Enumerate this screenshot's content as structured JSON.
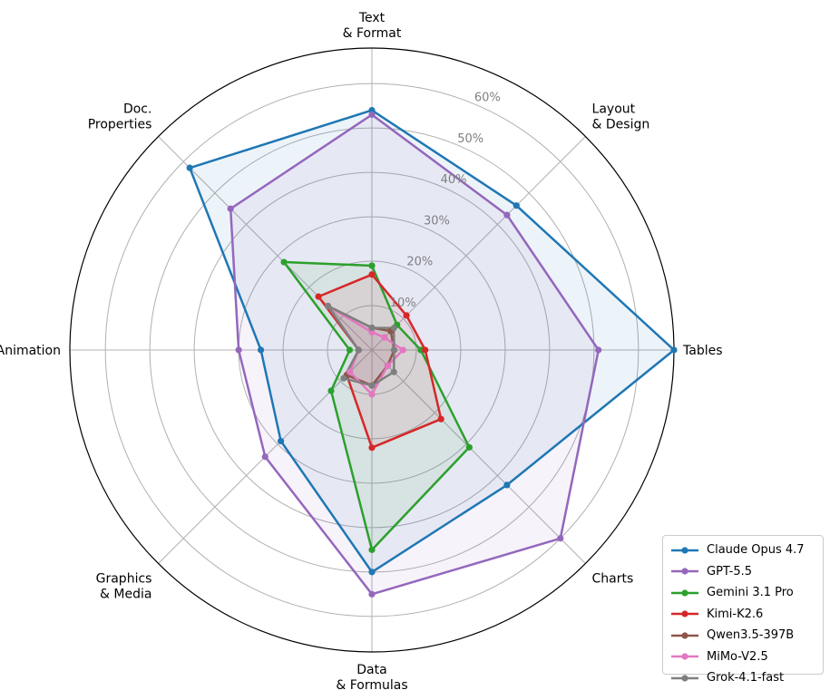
{
  "chart_data": {
    "type": "radar",
    "axes": [
      "Text\n& Format",
      "Layout\n& Design",
      "Tables",
      "Charts",
      "Data\n& Formulas",
      "Graphics\n& Media",
      "Animation",
      "Doc.\nProperties"
    ],
    "r_ticks": [
      "10%",
      "20%",
      "30%",
      "40%",
      "50%",
      "60%"
    ],
    "r_max": 68,
    "grid": true,
    "legend_position": "lower-right",
    "series": [
      {
        "name": "Claude Opus 4.7",
        "color": "#1f77b4",
        "values": [
          54,
          46,
          68,
          43,
          50,
          29,
          25,
          58
        ]
      },
      {
        "name": "GPT-5.5",
        "color": "#9467bd",
        "values": [
          53,
          43,
          51,
          60,
          55,
          34,
          30,
          45
        ]
      },
      {
        "name": "Gemini 3.1 Pro",
        "color": "#2ca02c",
        "values": [
          19,
          8,
          11,
          31,
          45,
          13,
          5,
          28
        ]
      },
      {
        "name": "Kimi-K2.6",
        "color": "#d62728",
        "values": [
          17,
          11,
          12,
          22,
          22,
          8,
          3,
          17
        ]
      },
      {
        "name": "Qwen3.5-397B",
        "color": "#8c564b",
        "values": [
          5,
          6,
          5,
          5,
          8,
          8,
          3,
          14
        ]
      },
      {
        "name": "MiMo-V2.5",
        "color": "#e377c2",
        "values": [
          4,
          4,
          7,
          5,
          10,
          7,
          3,
          14
        ]
      },
      {
        "name": "Grok-4.1-fast",
        "color": "#7f7f7f",
        "values": [
          5,
          7,
          5,
          7,
          8,
          9,
          3,
          14
        ]
      }
    ]
  }
}
